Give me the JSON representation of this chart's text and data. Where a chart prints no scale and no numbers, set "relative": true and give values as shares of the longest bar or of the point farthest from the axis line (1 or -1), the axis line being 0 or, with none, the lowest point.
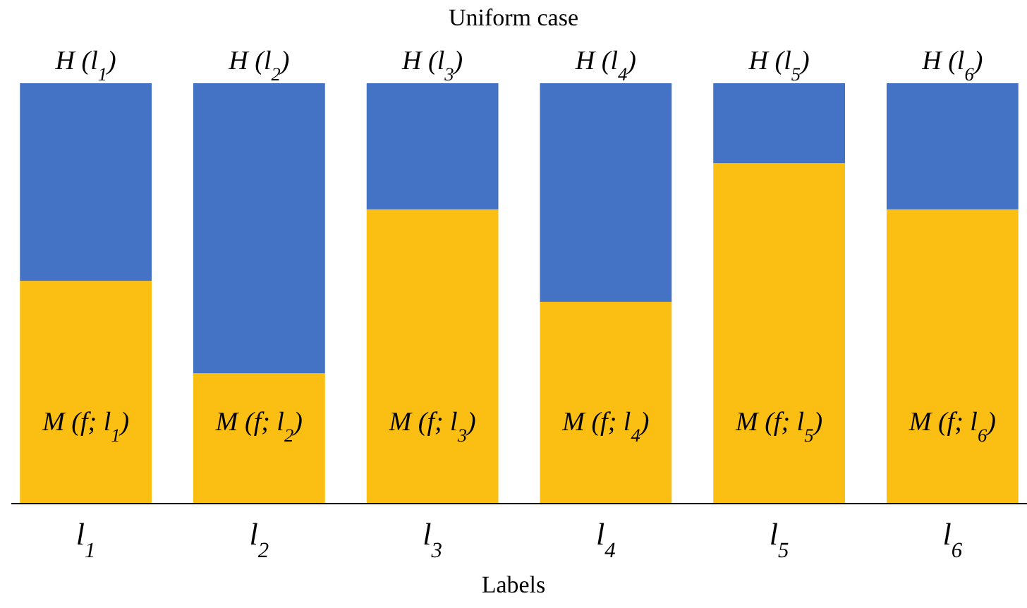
{
  "chart_data": {
    "type": "bar",
    "title": "Uniform case",
    "xlabel": "Labels",
    "categories": [
      "l$_{1}$",
      "l$_{2}$",
      "l$_{3}$",
      "l$_{4}$",
      "l$_{5}$",
      "l$_{6}$"
    ],
    "stacked": true,
    "relative": true,
    "series": [
      {
        "color": "#fbbf14",
        "values": [
          0.53,
          0.31,
          0.7,
          0.48,
          0.81,
          0.7
        ]
      },
      {
        "color": "#4472c4",
        "values": [
          0.47,
          0.69,
          0.3,
          0.52,
          0.19,
          0.3
        ]
      }
    ],
    "annotations": [
      "M (f; l$_{1}$)",
      "M (f; l$_{2}$)",
      "M (f; l$_{3}$)",
      "M (f; l$_{4}$)",
      "M (f; l$_{5}$)",
      "M (f; l$_{6}$)",
      {
        "text": "H (l$_{1}$)",
        "x": "l$_{1}$",
        "y": 1
      },
      {
        "text": "H (l$_{2}$)",
        "x": "l$_{2}$",
        "y": 1
      },
      {
        "text": "H (l$_{3}$)",
        "x": "l$_{3}$",
        "y": 1
      },
      {
        "text": "H (l$_{4}$)",
        "x": "l$_{4}$",
        "y": 1
      },
      {
        "text": "H (l$_{5}$)",
        "x": "l$_{5}$",
        "y": 1
      },
      {
        "text": "H (l$_{6}$)",
        "x": "l$_{6}$",
        "y": 1
      }
    ]
  }
}
